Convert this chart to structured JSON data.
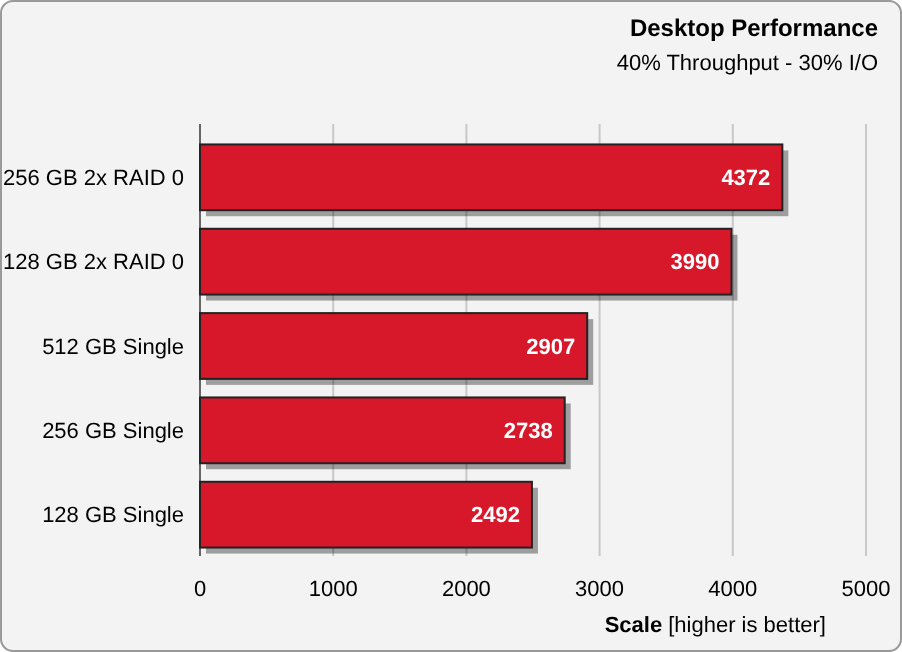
{
  "chart_data": {
    "type": "bar",
    "orientation": "horizontal",
    "title": "Desktop Performance",
    "subtitle": "40% Throughput - 30% I/O",
    "xlabel": "Scale [higher is better]",
    "categories": [
      "256 GB 2x RAID 0",
      "128 GB 2x RAID 0",
      "512 GB Single",
      "256 GB Single",
      "128 GB Single"
    ],
    "values": [
      4372,
      3990,
      2907,
      2738,
      2492
    ],
    "color": "#d7182a",
    "data_labels": true,
    "xlim": [
      0,
      5000
    ],
    "xticks": [
      0,
      1000,
      2000,
      3000,
      4000,
      5000
    ],
    "grid": "x"
  }
}
